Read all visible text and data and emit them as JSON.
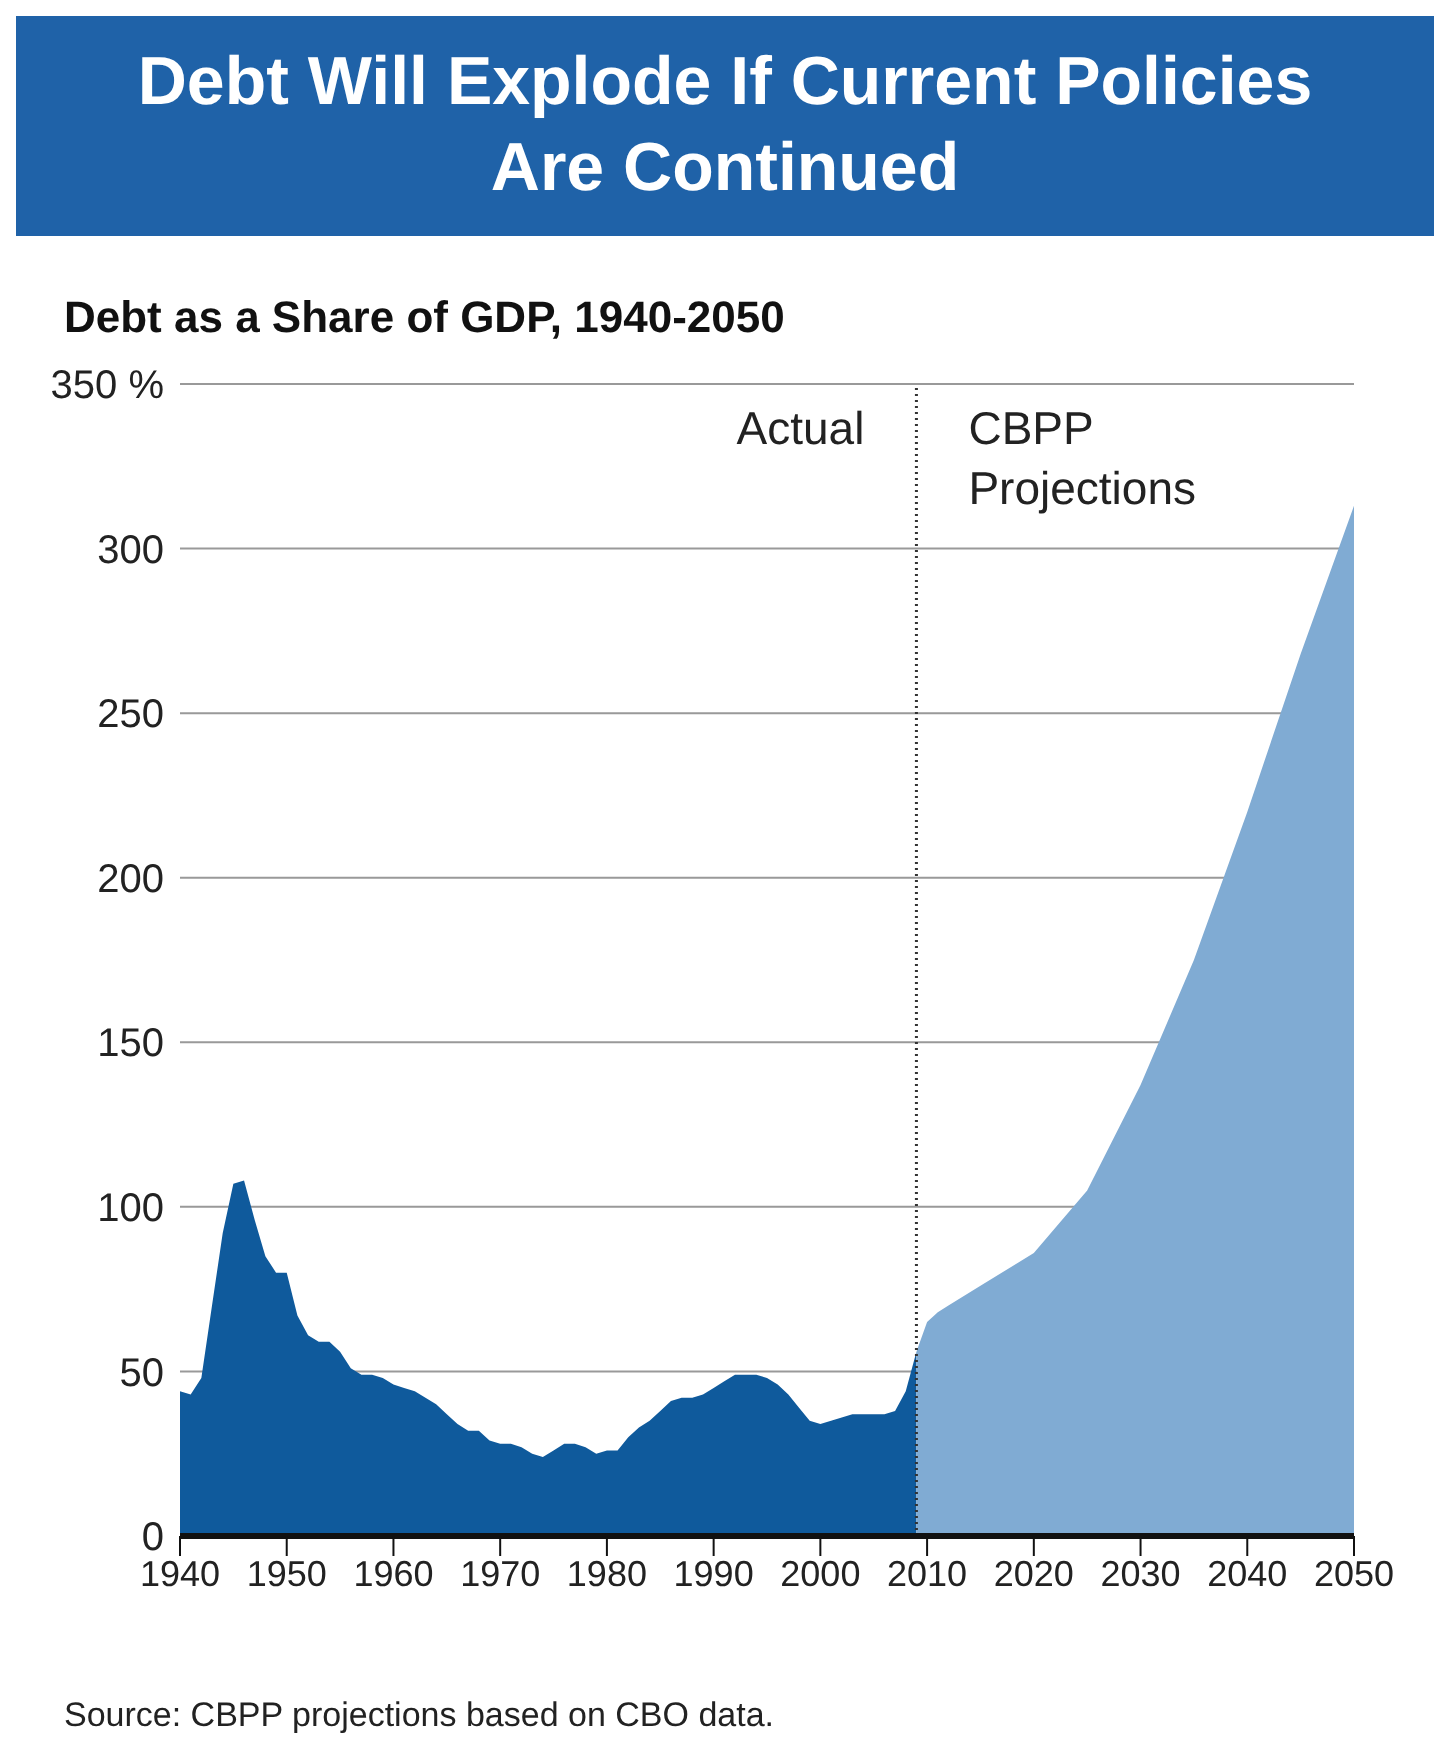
{
  "chart_data": {
    "type": "area",
    "title": "Debt Will Explode If Current Policies Are Continued",
    "subtitle": "Debt as a Share of GDP, 1940-2050",
    "annotations": [
      "Actual",
      "CBPP Projections",
      "Source: CBPP projections based on CBO data."
    ],
    "series": [
      {
        "color": "#0f5a9c",
        "x": [
          1940,
          1941,
          1942,
          1943,
          1944,
          1945,
          1946,
          1947,
          1948,
          1949,
          1950,
          1951,
          1952,
          1953,
          1954,
          1955,
          1956,
          1957,
          1958,
          1959,
          1960,
          1961,
          1962,
          1963,
          1964,
          1965,
          1966,
          1967,
          1968,
          1969,
          1970,
          1971,
          1972,
          1973,
          1974,
          1975,
          1976,
          1977,
          1978,
          1979,
          1980,
          1981,
          1982,
          1983,
          1984,
          1985,
          1986,
          1987,
          1988,
          1989,
          1990,
          1991,
          1992,
          1993,
          1994,
          1995,
          1996,
          1997,
          1998,
          1999,
          2000,
          2001,
          2002,
          2003,
          2004,
          2005,
          2006,
          2007,
          2008,
          2009
        ],
        "values": [
          44,
          43,
          48,
          70,
          92,
          107,
          108,
          96,
          85,
          80,
          80,
          67,
          61,
          59,
          59,
          56,
          51,
          49,
          49,
          48,
          46,
          45,
          44,
          42,
          40,
          37,
          34,
          32,
          32,
          29,
          28,
          28,
          27,
          25,
          24,
          26,
          28,
          28,
          27,
          25,
          26,
          26,
          30,
          33,
          35,
          38,
          41,
          42,
          42,
          43,
          45,
          47,
          49,
          49,
          49,
          48,
          46,
          43,
          39,
          35,
          34,
          35,
          36,
          37,
          37,
          37,
          37,
          38,
          44,
          56
        ]
      },
      {
        "color": "#80abd3",
        "x": [
          2009,
          2010,
          2011,
          2012,
          2015,
          2020,
          2025,
          2030,
          2035,
          2040,
          2045,
          2050
        ],
        "values": [
          56,
          65,
          68,
          70,
          76,
          86,
          105,
          137,
          175,
          220,
          268,
          313
        ]
      }
    ],
    "xlim": [
      1940,
      2050
    ],
    "xticks": [
      1940,
      1950,
      1960,
      1970,
      1980,
      1990,
      2000,
      2010,
      2020,
      2030,
      2040,
      2050
    ],
    "ylim": [
      0,
      350
    ],
    "yticks": [
      0,
      50,
      100,
      150,
      200,
      250,
      300,
      {
        "value": 350,
        "label": "350 %"
      }
    ],
    "grid": "y",
    "ref_lines": [
      {
        "axis": "x",
        "value": 2009,
        "line_style": "dotted",
        "color": "#333333"
      }
    ]
  }
}
